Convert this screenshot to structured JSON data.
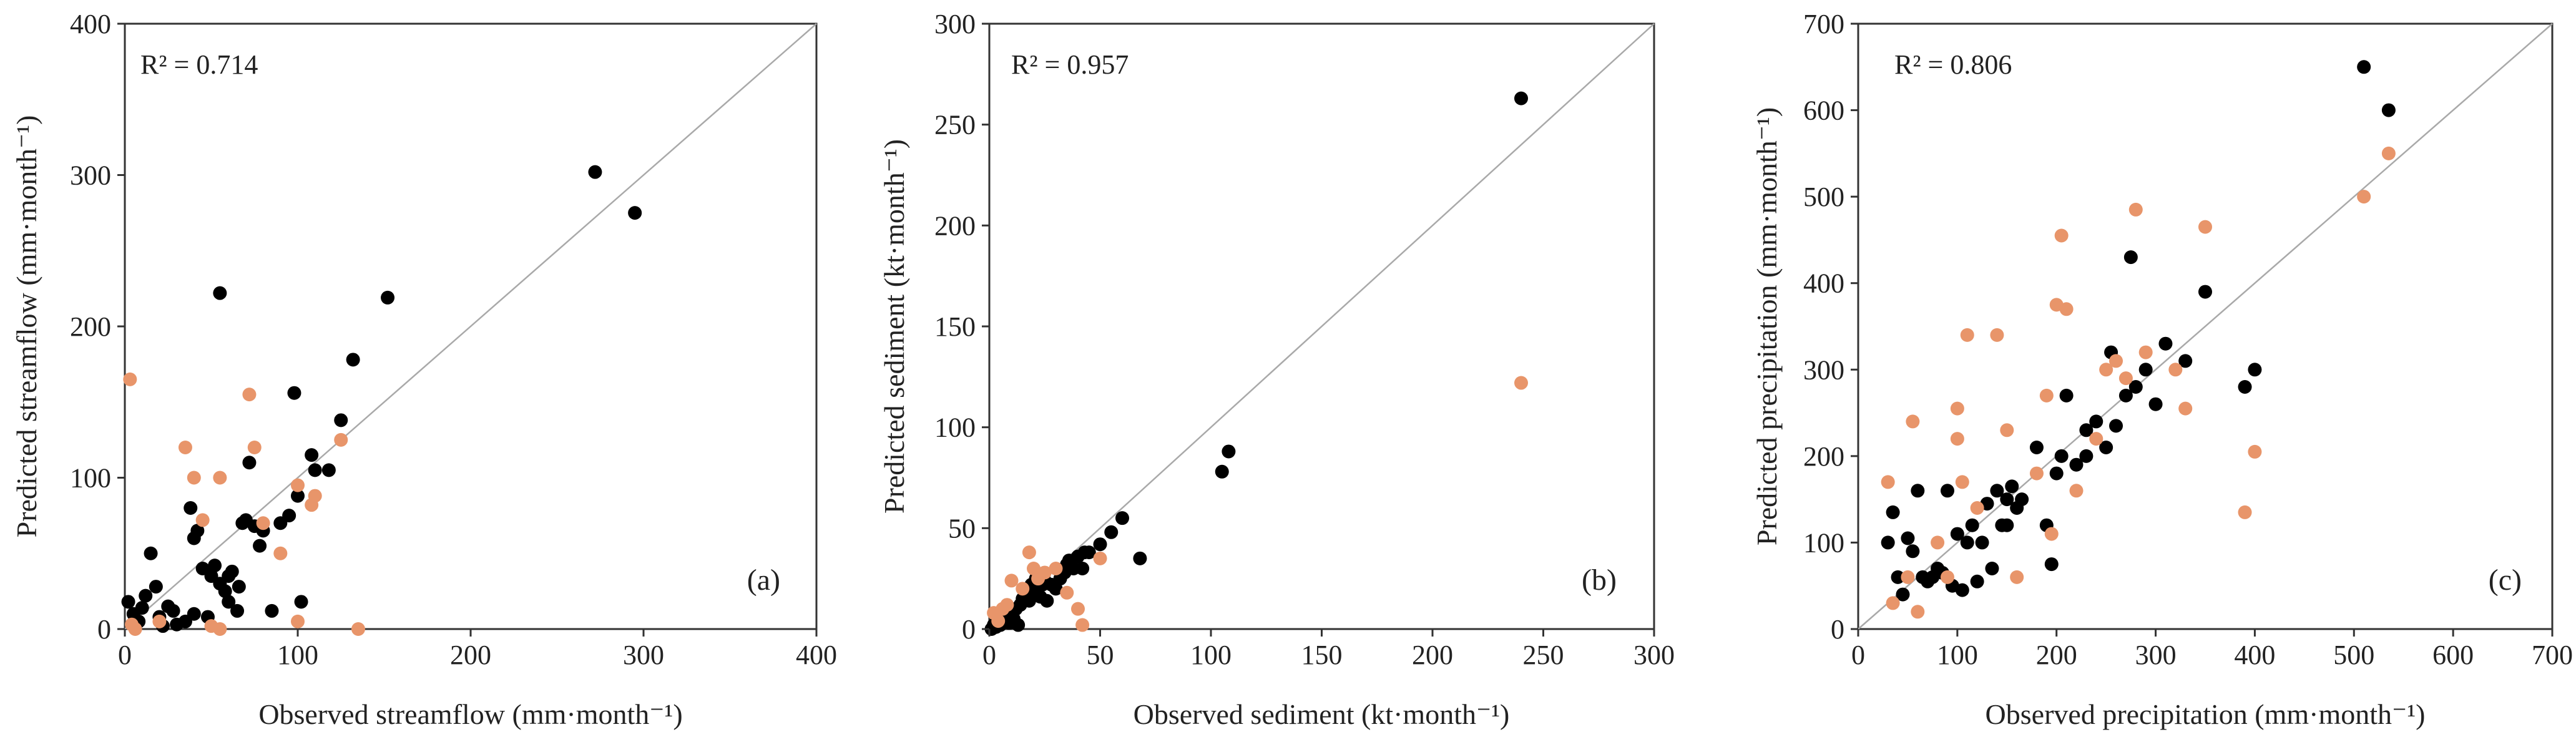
{
  "colors": {
    "calibration": "#000000",
    "validation": "#e8956a",
    "one_to_one": "#a9a9a9"
  },
  "chart_data": [
    {
      "type": "scatter",
      "panel_label": "(a)",
      "r2": "R² = 0.714",
      "xlabel": "Observed streamflow (mm·month⁻¹)",
      "ylabel": "Predicted streamflow (mm·month⁻¹)",
      "xlim": [
        0,
        400
      ],
      "ylim": [
        0,
        400
      ],
      "xticks": [
        0,
        100,
        200,
        300,
        400
      ],
      "yticks": [
        0,
        100,
        200,
        300,
        400
      ],
      "series": [
        {
          "name": "black",
          "color": "#000000",
          "points": [
            [
              2,
              18
            ],
            [
              5,
              10
            ],
            [
              8,
              5
            ],
            [
              10,
              14
            ],
            [
              12,
              22
            ],
            [
              15,
              50
            ],
            [
              18,
              28
            ],
            [
              20,
              8
            ],
            [
              22,
              2
            ],
            [
              25,
              15
            ],
            [
              28,
              12
            ],
            [
              30,
              3
            ],
            [
              35,
              5
            ],
            [
              38,
              80
            ],
            [
              40,
              60
            ],
            [
              42,
              65
            ],
            [
              45,
              40
            ],
            [
              48,
              8
            ],
            [
              50,
              35
            ],
            [
              52,
              42
            ],
            [
              55,
              30
            ],
            [
              55,
              222
            ],
            [
              58,
              25
            ],
            [
              60,
              18
            ],
            [
              62,
              38
            ],
            [
              65,
              12
            ],
            [
              68,
              70
            ],
            [
              70,
              72
            ],
            [
              72,
              110
            ],
            [
              75,
              68
            ],
            [
              78,
              55
            ],
            [
              80,
              65
            ],
            [
              85,
              12
            ],
            [
              90,
              70
            ],
            [
              95,
              75
            ],
            [
              98,
              156
            ],
            [
              100,
              88
            ],
            [
              102,
              18
            ],
            [
              108,
              115
            ],
            [
              110,
              105
            ],
            [
              118,
              105
            ],
            [
              125,
              138
            ],
            [
              132,
              178
            ],
            [
              152,
              219
            ],
            [
              272,
              302
            ],
            [
              295,
              275
            ],
            [
              40,
              10
            ],
            [
              60,
              35
            ],
            [
              66,
              28
            ]
          ]
        },
        {
          "name": "orange",
          "color": "#e8956a",
          "points": [
            [
              3,
              165
            ],
            [
              4,
              3
            ],
            [
              6,
              0
            ],
            [
              20,
              5
            ],
            [
              35,
              120
            ],
            [
              40,
              100
            ],
            [
              45,
              72
            ],
            [
              50,
              2
            ],
            [
              55,
              100
            ],
            [
              55,
              0
            ],
            [
              72,
              155
            ],
            [
              75,
              120
            ],
            [
              80,
              70
            ],
            [
              90,
              50
            ],
            [
              100,
              95
            ],
            [
              100,
              5
            ],
            [
              108,
              82
            ],
            [
              110,
              88
            ],
            [
              125,
              125
            ],
            [
              135,
              0
            ]
          ]
        }
      ]
    },
    {
      "type": "scatter",
      "panel_label": "(b)",
      "r2": "R² = 0.957",
      "xlabel": "Observed sediment (kt·month⁻¹)",
      "ylabel": "Predicted sediment (kt·month⁻¹)",
      "xlim": [
        0,
        300
      ],
      "ylim": [
        0,
        300
      ],
      "xticks": [
        0,
        50,
        100,
        150,
        200,
        250,
        300
      ],
      "yticks": [
        0,
        50,
        100,
        150,
        200,
        250,
        300
      ],
      "series": [
        {
          "name": "black",
          "color": "#000000",
          "points": [
            [
              1,
              0
            ],
            [
              2,
              2
            ],
            [
              3,
              1
            ],
            [
              4,
              3
            ],
            [
              5,
              2
            ],
            [
              6,
              5
            ],
            [
              7,
              4
            ],
            [
              8,
              6
            ],
            [
              9,
              3
            ],
            [
              10,
              8
            ],
            [
              11,
              5
            ],
            [
              12,
              10
            ],
            [
              13,
              2
            ],
            [
              14,
              12
            ],
            [
              15,
              15
            ],
            [
              16,
              18
            ],
            [
              17,
              20
            ],
            [
              18,
              14
            ],
            [
              19,
              22
            ],
            [
              20,
              18
            ],
            [
              21,
              25
            ],
            [
              22,
              20
            ],
            [
              23,
              16
            ],
            [
              24,
              22
            ],
            [
              25,
              24
            ],
            [
              26,
              14
            ],
            [
              28,
              22
            ],
            [
              30,
              20
            ],
            [
              32,
              25
            ],
            [
              34,
              28
            ],
            [
              35,
              32
            ],
            [
              36,
              34
            ],
            [
              38,
              30
            ],
            [
              40,
              36
            ],
            [
              42,
              30
            ],
            [
              43,
              38
            ],
            [
              45,
              38
            ],
            [
              50,
              42
            ],
            [
              55,
              48
            ],
            [
              60,
              55
            ],
            [
              68,
              35
            ],
            [
              105,
              78
            ],
            [
              108,
              88
            ],
            [
              240,
              263
            ]
          ]
        },
        {
          "name": "orange",
          "color": "#e8956a",
          "points": [
            [
              2,
              8
            ],
            [
              4,
              4
            ],
            [
              6,
              10
            ],
            [
              8,
              12
            ],
            [
              10,
              24
            ],
            [
              15,
              20
            ],
            [
              18,
              38
            ],
            [
              20,
              30
            ],
            [
              22,
              25
            ],
            [
              25,
              28
            ],
            [
              30,
              30
            ],
            [
              35,
              18
            ],
            [
              40,
              10
            ],
            [
              42,
              2
            ],
            [
              50,
              35
            ],
            [
              240,
              122
            ]
          ]
        }
      ]
    },
    {
      "type": "scatter",
      "panel_label": "(c)",
      "r2": "R² = 0.806",
      "xlabel": "Observed precipitation (mm·month⁻¹)",
      "ylabel": "Predicted precipitation (mm·month⁻¹)",
      "xlim": [
        0,
        700
      ],
      "ylim": [
        0,
        700
      ],
      "xticks": [
        0,
        100,
        200,
        300,
        400,
        500,
        600,
        700
      ],
      "yticks": [
        0,
        100,
        200,
        300,
        400,
        500,
        600,
        700
      ],
      "series": [
        {
          "name": "black",
          "color": "#000000",
          "points": [
            [
              30,
              100
            ],
            [
              35,
              135
            ],
            [
              40,
              60
            ],
            [
              45,
              40
            ],
            [
              50,
              105
            ],
            [
              55,
              90
            ],
            [
              60,
              160
            ],
            [
              65,
              60
            ],
            [
              70,
              55
            ],
            [
              75,
              60
            ],
            [
              80,
              70
            ],
            [
              85,
              65
            ],
            [
              90,
              160
            ],
            [
              95,
              50
            ],
            [
              100,
              110
            ],
            [
              105,
              45
            ],
            [
              110,
              100
            ],
            [
              115,
              120
            ],
            [
              120,
              55
            ],
            [
              125,
              100
            ],
            [
              130,
              145
            ],
            [
              135,
              70
            ],
            [
              140,
              160
            ],
            [
              145,
              120
            ],
            [
              150,
              150
            ],
            [
              155,
              165
            ],
            [
              160,
              140
            ],
            [
              165,
              150
            ],
            [
              180,
              210
            ],
            [
              190,
              120
            ],
            [
              195,
              75
            ],
            [
              200,
              180
            ],
            [
              205,
              200
            ],
            [
              210,
              270
            ],
            [
              220,
              190
            ],
            [
              230,
              230
            ],
            [
              240,
              240
            ],
            [
              250,
              210
            ],
            [
              255,
              320
            ],
            [
              260,
              235
            ],
            [
              270,
              270
            ],
            [
              275,
              430
            ],
            [
              280,
              280
            ],
            [
              290,
              300
            ],
            [
              300,
              260
            ],
            [
              310,
              330
            ],
            [
              330,
              310
            ],
            [
              350,
              390
            ],
            [
              390,
              280
            ],
            [
              400,
              300
            ],
            [
              510,
              650
            ],
            [
              535,
              600
            ],
            [
              150,
              120
            ],
            [
              230,
              200
            ]
          ]
        },
        {
          "name": "orange",
          "color": "#e8956a",
          "points": [
            [
              30,
              170
            ],
            [
              35,
              30
            ],
            [
              50,
              60
            ],
            [
              55,
              240
            ],
            [
              60,
              20
            ],
            [
              80,
              100
            ],
            [
              90,
              60
            ],
            [
              100,
              220
            ],
            [
              100,
              255
            ],
            [
              105,
              170
            ],
            [
              110,
              340
            ],
            [
              120,
              140
            ],
            [
              140,
              340
            ],
            [
              150,
              230
            ],
            [
              160,
              60
            ],
            [
              180,
              180
            ],
            [
              190,
              270
            ],
            [
              195,
              110
            ],
            [
              200,
              375
            ],
            [
              205,
              455
            ],
            [
              210,
              370
            ],
            [
              220,
              160
            ],
            [
              240,
              220
            ],
            [
              250,
              300
            ],
            [
              260,
              310
            ],
            [
              270,
              290
            ],
            [
              280,
              485
            ],
            [
              290,
              320
            ],
            [
              320,
              300
            ],
            [
              330,
              255
            ],
            [
              350,
              465
            ],
            [
              390,
              135
            ],
            [
              400,
              205
            ],
            [
              510,
              500
            ],
            [
              535,
              550
            ]
          ]
        }
      ]
    }
  ]
}
